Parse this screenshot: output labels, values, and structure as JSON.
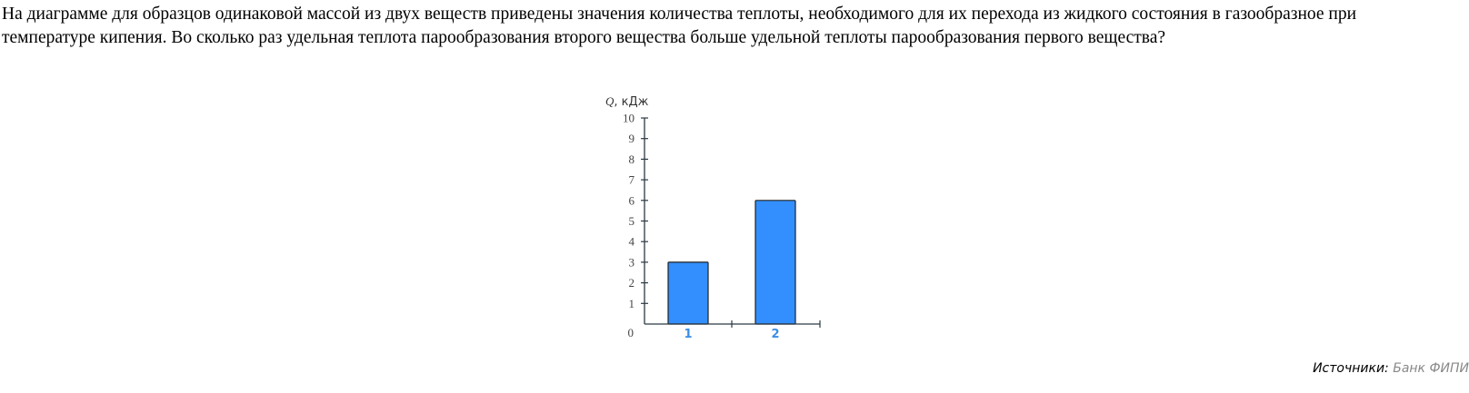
{
  "question": "На диаграмме для образцов одинаковой массой из двух веществ приведены значения количества теплоты, необходимого для их перехода из жидкого состояния в газообразное при температуре кипения. Во сколько раз удельная теплота парообразования второго вещества больше удельной теплоты парообразования первого вещества?",
  "source": {
    "label": "Источники:",
    "value": "Банк ФИПИ"
  },
  "chart_data": {
    "type": "bar",
    "categories": [
      "1",
      "2"
    ],
    "values": [
      3,
      6
    ],
    "ylabel_symbol": "Q",
    "ylabel_unit": ", кДж",
    "ylim": [
      0,
      10
    ],
    "yticks": [
      "0",
      "1",
      "2",
      "3",
      "4",
      "5",
      "6",
      "7",
      "8",
      "9",
      "10"
    ],
    "grid": false,
    "bar_color": "#328ffd",
    "category_label_color": "#3a8ee6"
  }
}
